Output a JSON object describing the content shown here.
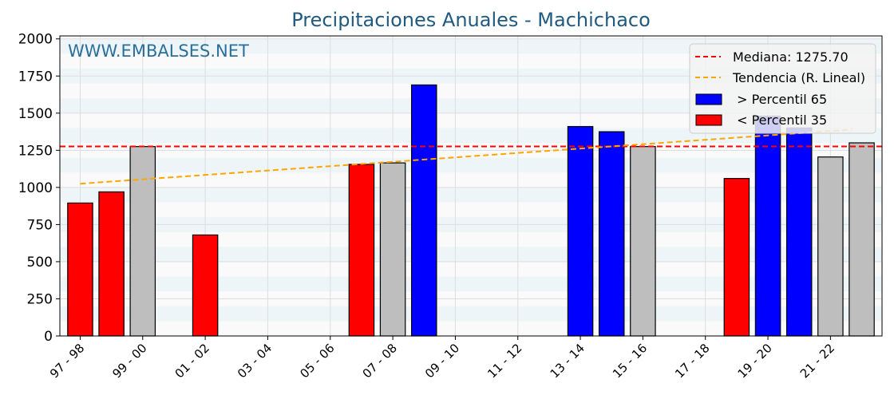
{
  "chart_data": {
    "type": "bar",
    "title": "Precipitaciones Anuales - Machichaco",
    "watermark": "WWW.EMBALSES.NET",
    "categories": [
      "97 - 98",
      "98 - 99",
      "99 - 00",
      "00 - 01",
      "01 - 02",
      "02 - 03",
      "03 - 04",
      "04 - 05",
      "05 - 06",
      "06 - 07",
      "07 - 08",
      "08 - 09",
      "09 - 10",
      "10 - 11",
      "11 - 12",
      "12 - 13",
      "13 - 14",
      "14 - 15",
      "15 - 16",
      "16 - 17",
      "17 - 18",
      "18 - 19",
      "19 - 20",
      "20 - 21",
      "21 - 22",
      "22 - 23"
    ],
    "tick_labels": [
      "97 - 98",
      "99 - 00",
      "01 - 02",
      "03 - 04",
      "05 - 06",
      "07 - 08",
      "09 - 10",
      "11 - 12",
      "13 - 14",
      "15 - 16",
      "17 - 18",
      "19 - 20",
      "21 - 22"
    ],
    "values": [
      895,
      970,
      1275,
      null,
      680,
      null,
      null,
      null,
      null,
      1155,
      1165,
      1690,
      null,
      null,
      null,
      null,
      1410,
      1375,
      1275,
      null,
      null,
      1060,
      1480,
      1400,
      1205,
      1300
    ],
    "classes": [
      "low",
      "low",
      "mid",
      null,
      "low",
      null,
      null,
      null,
      null,
      "low",
      "mid",
      "high",
      null,
      null,
      null,
      null,
      "high",
      "high",
      "mid",
      null,
      null,
      "low",
      "high",
      "high",
      "mid",
      "mid"
    ],
    "colors": {
      "high": "#0000ff",
      "low": "#ff0000",
      "mid": "#bebebe",
      "median": "#ff0000",
      "trend": "#ffa500"
    },
    "median": 1275.7,
    "trend": {
      "start": 1025,
      "end": 1390
    },
    "ylim": [
      0,
      2020
    ],
    "yticks": [
      0,
      250,
      500,
      750,
      1000,
      1250,
      1500,
      1750,
      2000
    ],
    "grid": true,
    "legend_position": "top-right",
    "legend": [
      "Mediana: 1275.70",
      "Tendencia (R. Lineal)",
      " > Percentil 65",
      " < Percentil 35"
    ]
  }
}
